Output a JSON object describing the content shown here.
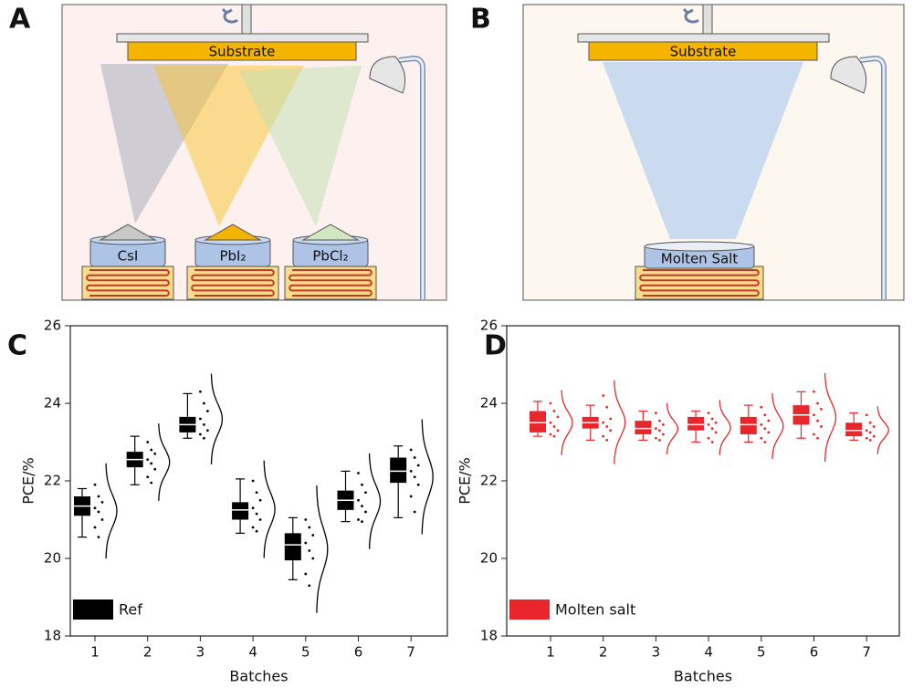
{
  "diagrams": [
    {
      "label": "A",
      "substrate": "Substrate",
      "sources": [
        "CsI",
        "PbI₂",
        "PbCl₂"
      ]
    },
    {
      "label": "B",
      "substrate": "Substrate",
      "sources": [
        "Molten Salt"
      ]
    }
  ],
  "chart_data": [
    {
      "type": "box",
      "label": "C",
      "xlabel": "Batches",
      "ylabel": "PCE/%",
      "categories": [
        "1",
        "2",
        "3",
        "4",
        "5",
        "6",
        "7"
      ],
      "ylim": [
        18,
        26
      ],
      "yticks": [
        18,
        20,
        22,
        24,
        26
      ],
      "legend": "lower left",
      "series": [
        {
          "name": "Ref",
          "color": "#000000",
          "whislo": [
            20.55,
            21.9,
            23.1,
            20.65,
            19.45,
            20.95,
            21.05
          ],
          "q1": [
            21.1,
            22.35,
            23.25,
            21.0,
            19.95,
            21.25,
            21.95
          ],
          "median": [
            21.35,
            22.55,
            23.45,
            21.25,
            20.35,
            21.5,
            22.25
          ],
          "q3": [
            21.6,
            22.75,
            23.65,
            21.45,
            20.65,
            21.75,
            22.6
          ],
          "whishi": [
            21.8,
            23.15,
            24.25,
            22.05,
            21.05,
            22.25,
            22.9
          ],
          "points": [
            [
              21.9,
              21.6,
              21.45,
              21.3,
              21.2,
              21.0,
              20.8,
              20.55
            ],
            [
              23.0,
              22.8,
              22.7,
              22.55,
              22.45,
              22.3,
              22.1,
              21.95
            ],
            [
              24.3,
              24.0,
              23.8,
              23.6,
              23.45,
              23.3,
              23.2,
              23.1
            ],
            [
              22.0,
              21.7,
              21.5,
              21.3,
              21.15,
              21.0,
              20.8,
              20.7
            ],
            [
              21.0,
              20.8,
              20.6,
              20.4,
              20.2,
              20.0,
              19.6,
              19.3
            ],
            [
              22.2,
              21.9,
              21.7,
              21.5,
              21.35,
              21.2,
              21.0,
              20.95
            ],
            [
              22.8,
              22.6,
              22.4,
              22.25,
              22.1,
              21.9,
              21.6,
              21.2
            ]
          ]
        }
      ]
    },
    {
      "type": "box",
      "label": "D",
      "xlabel": "Batches",
      "ylabel": "PCE/%",
      "categories": [
        "1",
        "2",
        "3",
        "4",
        "5",
        "6",
        "7"
      ],
      "ylim": [
        18,
        26
      ],
      "yticks": [
        18,
        20,
        22,
        24,
        26
      ],
      "legend": "lower left",
      "series": [
        {
          "name": "Molten salt",
          "color": "#e8262b",
          "whislo": [
            23.15,
            23.05,
            23.05,
            23.0,
            23.0,
            23.1,
            23.05
          ],
          "q1": [
            23.25,
            23.35,
            23.2,
            23.3,
            23.2,
            23.45,
            23.15
          ],
          "median": [
            23.5,
            23.5,
            23.35,
            23.45,
            23.45,
            23.7,
            23.3
          ],
          "q3": [
            23.8,
            23.65,
            23.55,
            23.65,
            23.65,
            23.95,
            23.5
          ],
          "whishi": [
            24.05,
            23.95,
            23.8,
            23.8,
            23.95,
            24.3,
            23.75
          ],
          "points": [
            [
              24.0,
              23.8,
              23.65,
              23.5,
              23.4,
              23.3,
              23.2,
              23.15
            ],
            [
              24.2,
              23.9,
              23.6,
              23.5,
              23.4,
              23.3,
              23.15,
              23.05
            ],
            [
              23.75,
              23.55,
              23.45,
              23.35,
              23.3,
              23.2,
              23.1,
              23.05
            ],
            [
              23.75,
              23.6,
              23.5,
              23.45,
              23.35,
              23.25,
              23.1,
              23.0
            ],
            [
              23.9,
              23.7,
              23.55,
              23.45,
              23.35,
              23.25,
              23.1,
              23.0
            ],
            [
              24.3,
              24.0,
              23.85,
              23.7,
              23.55,
              23.4,
              23.2,
              23.1
            ],
            [
              23.7,
              23.5,
              23.4,
              23.3,
              23.25,
              23.15,
              23.1,
              23.05
            ]
          ]
        }
      ]
    }
  ]
}
